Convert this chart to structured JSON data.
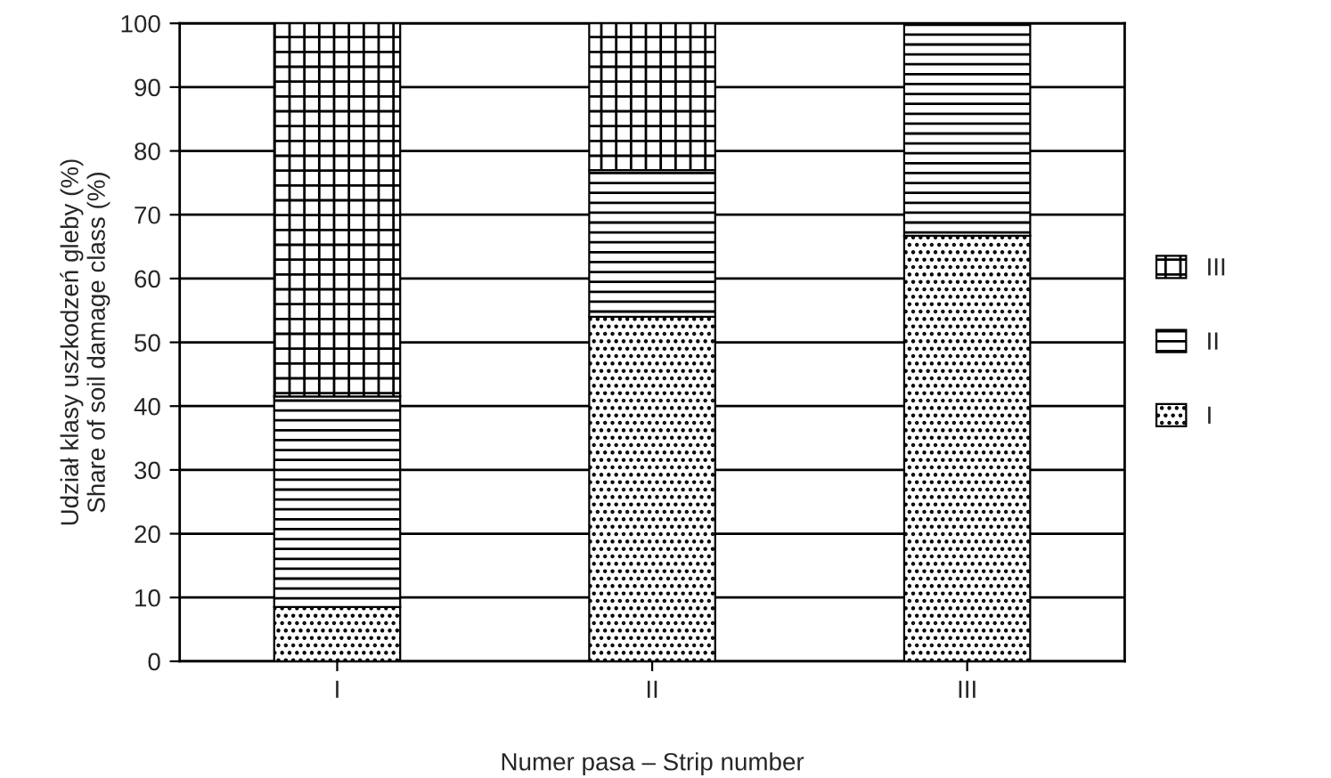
{
  "chart_data": {
    "type": "bar",
    "stacked": true,
    "xlabel": "Numer pasa – Strip number",
    "ylabel": "Udział klasy uszkodzeń gleby (%)\nShare of soil damage class (%)",
    "categories": [
      "I",
      "II",
      "III"
    ],
    "series": [
      {
        "name": "I",
        "color": "#000000",
        "values": [
          8.5,
          54,
          66.7
        ]
      },
      {
        "name": "II",
        "color": "#000000",
        "values": [
          33,
          23,
          33.3
        ]
      },
      {
        "name": "III",
        "color": "#000000",
        "values": [
          58.5,
          23,
          0
        ]
      }
    ],
    "ylim": [
      0,
      100
    ],
    "yticks": [
      0,
      10,
      20,
      30,
      40,
      50,
      60,
      70,
      80,
      90,
      100
    ],
    "grid": "y",
    "legend": "right"
  }
}
